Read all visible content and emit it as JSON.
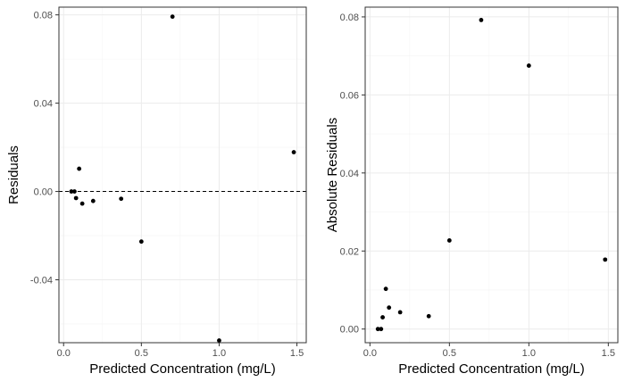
{
  "chart_data": [
    {
      "type": "scatter",
      "xlabel": "Predicted Concentration (mg/L)",
      "ylabel": "Residuals",
      "xlim": [
        -0.03,
        1.56
      ],
      "ylim": [
        -0.0685,
        0.0835
      ],
      "x_ticks": [
        0.0,
        0.5,
        1.0,
        1.5
      ],
      "x_tick_labels": [
        "0.0",
        "0.5",
        "1.0",
        "1.5"
      ],
      "y_ticks": [
        -0.04,
        0.0,
        0.04,
        0.08
      ],
      "y_tick_labels": [
        "-0.04",
        "0.00",
        "0.04",
        "0.08"
      ],
      "grid": true,
      "hline": 0,
      "x": [
        0.05,
        0.07,
        0.08,
        0.1,
        0.12,
        0.19,
        0.37,
        0.5,
        0.7,
        1.0,
        1.48
      ],
      "y": [
        0.0,
        0.0,
        -0.003,
        0.0103,
        -0.0055,
        -0.0043,
        -0.0033,
        -0.0227,
        0.0792,
        -0.0675,
        0.0178
      ],
      "colors": {
        "points": "#000000"
      }
    },
    {
      "type": "scatter",
      "xlabel": "Predicted Concentration (mg/L)",
      "ylabel": "Absolute Residuals",
      "xlim": [
        -0.03,
        1.56
      ],
      "ylim": [
        -0.0035,
        0.0825
      ],
      "x_ticks": [
        0.0,
        0.5,
        1.0,
        1.5
      ],
      "x_tick_labels": [
        "0.0",
        "0.5",
        "1.0",
        "1.5"
      ],
      "y_ticks": [
        0.0,
        0.02,
        0.04,
        0.06,
        0.08
      ],
      "y_tick_labels": [
        "0.00",
        "0.02",
        "0.04",
        "0.06",
        "0.08"
      ],
      "grid": true,
      "x": [
        0.05,
        0.07,
        0.08,
        0.1,
        0.12,
        0.19,
        0.37,
        0.5,
        0.7,
        1.0,
        1.48
      ],
      "y": [
        0.0,
        0.0,
        0.003,
        0.0103,
        0.0055,
        0.0043,
        0.0033,
        0.0227,
        0.0792,
        0.0675,
        0.0178
      ],
      "colors": {
        "points": "#000000"
      }
    }
  ]
}
